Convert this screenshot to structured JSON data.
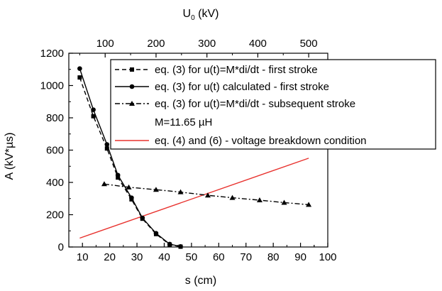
{
  "chart_data": {
    "type": "line",
    "xlabel": "s (cm)",
    "ylabel": "A (kV*µs)",
    "top_axis": {
      "label_main": "U",
      "label_sub": "0",
      "label_unit": " (kV)",
      "ticks": [
        "100",
        "200",
        "300",
        "400",
        "500"
      ]
    },
    "xlim": [
      5,
      100
    ],
    "ylim": [
      0,
      1200
    ],
    "xticks": [
      "10",
      "20",
      "30",
      "40",
      "50",
      "60",
      "70",
      "80",
      "90",
      "100"
    ],
    "yticks": [
      "0",
      "200",
      "400",
      "600",
      "800",
      "1000",
      "1200"
    ],
    "grid": false,
    "legend_position": "top-right",
    "series": [
      {
        "name": "eq. (3) for u(t)=M*di/dt - first stroke",
        "color": "#000000",
        "line_style": "dashed",
        "marker": "square",
        "points": [
          [
            9,
            1050
          ],
          [
            14,
            810
          ],
          [
            19,
            610
          ],
          [
            23,
            430
          ],
          [
            28,
            295
          ],
          [
            32,
            175
          ],
          [
            37,
            80
          ],
          [
            42,
            15
          ],
          [
            46,
            2
          ]
        ]
      },
      {
        "name": "eq. (3) for u(t) calculated - first stroke",
        "color": "#000000",
        "line_style": "solid",
        "marker": "circle",
        "points": [
          [
            9,
            1105
          ],
          [
            14,
            850
          ],
          [
            19,
            635
          ],
          [
            23,
            445
          ],
          [
            28,
            305
          ],
          [
            32,
            180
          ],
          [
            37,
            85
          ],
          [
            42,
            18
          ],
          [
            46,
            3
          ]
        ]
      },
      {
        "name": "eq. (3) for u(t)=M*di/dt - subsequent stroke",
        "color": "#000000",
        "line_style": "dashdot",
        "marker": "triangle",
        "points": [
          [
            18,
            390
          ],
          [
            27,
            370
          ],
          [
            37,
            355
          ],
          [
            46,
            340
          ],
          [
            56,
            320
          ],
          [
            65,
            305
          ],
          [
            75,
            290
          ],
          [
            84,
            275
          ],
          [
            93,
            262
          ]
        ]
      },
      {
        "name": "eq. (4) and (6) - voltage breakdown condition",
        "color": "#e8322e",
        "line_style": "solid",
        "marker": "none",
        "points": [
          [
            9,
            55
          ],
          [
            93,
            550
          ]
        ]
      }
    ],
    "annotation": "M=11.65 µH"
  }
}
